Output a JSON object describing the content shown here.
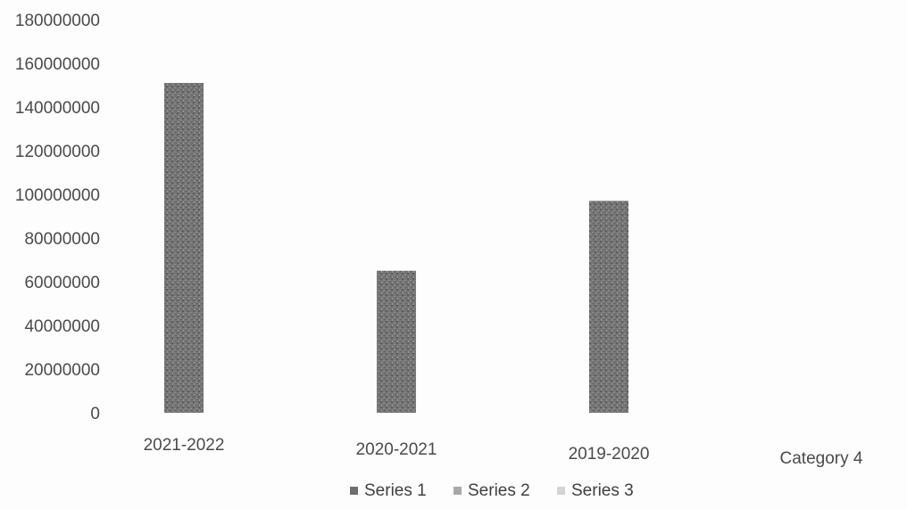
{
  "chart_data": {
    "type": "bar",
    "title": "",
    "xlabel": "",
    "ylabel": "",
    "categories": [
      "2021-2022",
      "2020-2021",
      "2019-2020",
      "Category 4"
    ],
    "series": [
      {
        "name": "Series 1",
        "values": [
          151000000,
          65000000,
          97000000,
          0
        ],
        "color": "#6e6e6e"
      },
      {
        "name": "Series 2",
        "values": [
          0,
          0,
          0,
          0
        ],
        "color": "#a8a8a8"
      },
      {
        "name": "Series 3",
        "values": [
          0,
          0,
          0,
          0
        ],
        "color": "#d4d4d4"
      }
    ],
    "ylim": [
      0,
      180000000
    ],
    "yticks": [
      "0",
      "20000000",
      "40000000",
      "60000000",
      "80000000",
      "100000000",
      "120000000",
      "140000000",
      "160000000",
      "180000000"
    ],
    "grid": false,
    "legend": "bottom"
  }
}
